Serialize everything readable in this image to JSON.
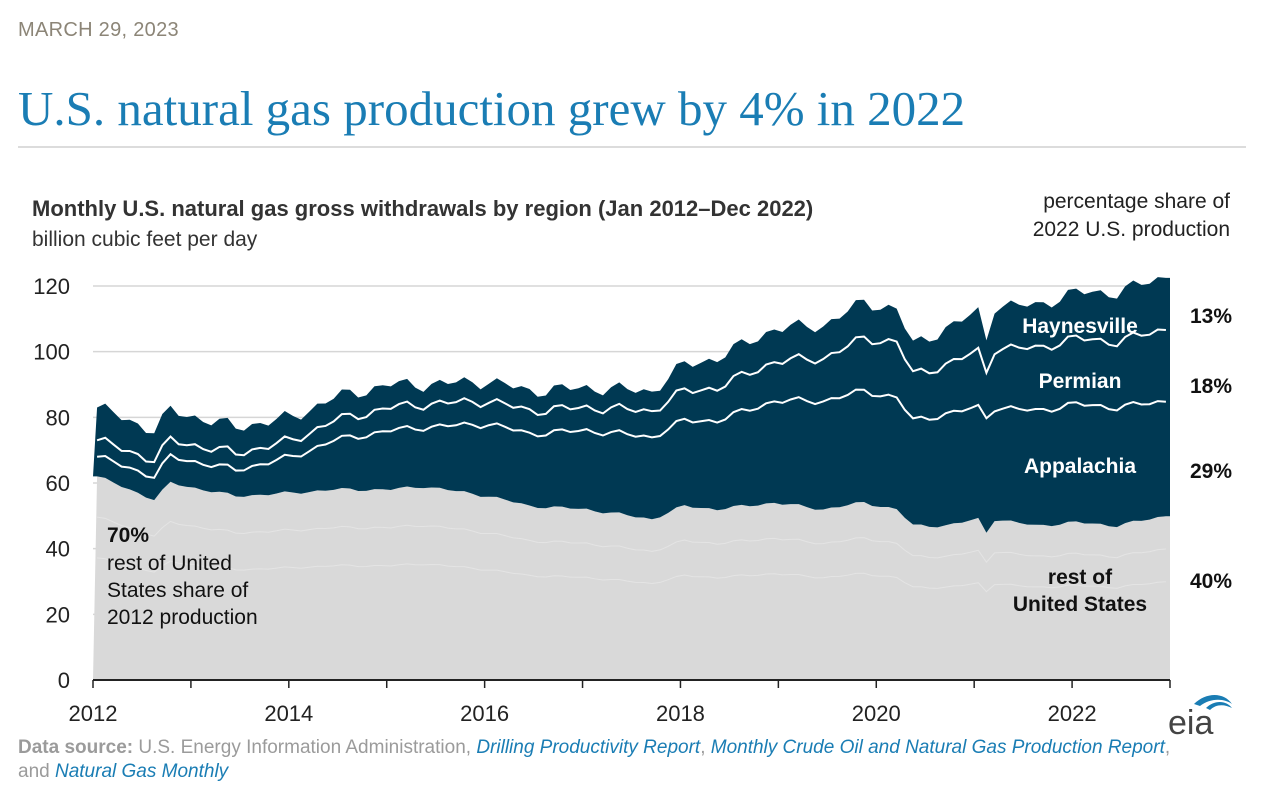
{
  "header": {
    "date": "MARCH 29, 2023",
    "headline": "U.S. natural gas production grew by 4% in 2022"
  },
  "share_header": {
    "line1": "percentage share of",
    "line2": "2022 U.S. production"
  },
  "source": {
    "label": "Data source:",
    "text1": " U.S. Energy Information Administration, ",
    "link1": "Drilling Productivity Report",
    "text2": ", ",
    "link2": "Monthly Crude Oil and Natural Gas Production Report",
    "text3": ", and ",
    "link3": "Natural Gas Monthly"
  },
  "logo": {
    "text": "eia",
    "icon": "eia-logo-icon"
  },
  "colors": {
    "rest_of_us": "#d9d9d9",
    "regions": "#003953",
    "divider": "#ffffff",
    "grid": "#d6d6d6",
    "headline": "#1a7db4"
  },
  "chart_data": {
    "type": "area",
    "title": "Monthly U.S. natural gas gross withdrawals by region  (Jan 2012–Dec 2022)",
    "subtitle": "billion cubic feet per day",
    "stacking": "stacked",
    "ylim": [
      0,
      120
    ],
    "y_ticks": [
      0,
      20,
      40,
      60,
      80,
      100,
      120
    ],
    "xlim": [
      "2012-01",
      "2022-12"
    ],
    "x_ticks": [
      "2012",
      "2014",
      "2016",
      "2018",
      "2020",
      "2022"
    ],
    "grid": true,
    "x_keypoints": [
      "2012-01",
      "2012-08",
      "2012-10",
      "2013-06",
      "2014-01",
      "2014-06",
      "2015-01",
      "2015-05",
      "2016-01",
      "2016-06",
      "2017-01",
      "2017-09",
      "2018-01",
      "2018-05",
      "2018-12",
      "2019-06",
      "2019-11",
      "2020-03",
      "2020-05",
      "2020-09",
      "2021-01",
      "2021-02",
      "2021-03",
      "2021-08",
      "2022-01",
      "2022-06",
      "2022-12"
    ],
    "series": [
      {
        "name": "rest of United States",
        "values": [
          62,
          55,
          60,
          56,
          57,
          58,
          58,
          59,
          56,
          53,
          52,
          49,
          53,
          52,
          54,
          52,
          54,
          52,
          47,
          47,
          49,
          45,
          49,
          47,
          48,
          47,
          50
        ]
      },
      {
        "name": "Appalachia",
        "values": [
          6,
          7,
          8,
          8,
          11,
          15,
          18,
          18,
          22,
          22,
          24,
          25,
          26,
          27,
          31,
          33,
          34,
          34,
          32,
          34,
          34,
          35,
          34,
          35,
          36,
          36,
          35
        ]
      },
      {
        "name": "Permian",
        "values": [
          5,
          5,
          5,
          5,
          5,
          6,
          7,
          7,
          7,
          7,
          7,
          8,
          9,
          10,
          12,
          13,
          16,
          17,
          14,
          15,
          17,
          14,
          18,
          19,
          20,
          20,
          22
        ]
      },
      {
        "name": "Haynesville",
        "values": [
          10,
          9,
          9,
          8,
          7,
          7,
          7,
          6,
          6,
          6,
          6,
          6,
          8,
          9,
          10,
          10,
          11,
          10,
          9,
          11,
          12,
          10,
          13,
          13,
          14,
          15,
          16
        ]
      }
    ],
    "region_labels": [
      "Haynesville",
      "Permian",
      "Appalachia"
    ],
    "rest_label": [
      "rest of",
      "United States"
    ],
    "shares_2022": [
      "13%",
      "18%",
      "29%",
      "40%"
    ],
    "annotation": {
      "pct": "70%",
      "lines": [
        "rest of United",
        "States share of",
        "2012 production"
      ]
    }
  }
}
